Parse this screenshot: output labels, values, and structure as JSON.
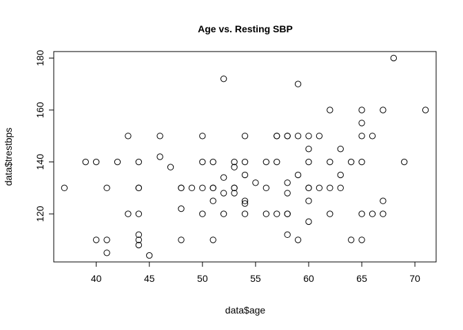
{
  "chart_data": {
    "type": "scatter",
    "title": "Age vs. Resting SBP",
    "xlabel": "data$age",
    "ylabel": "data$trestbps",
    "xlim": [
      36,
      72
    ],
    "ylim": [
      101.5,
      182.5
    ],
    "xticks": [
      40,
      45,
      50,
      55,
      60,
      65,
      70
    ],
    "yticks": [
      120,
      140,
      160,
      180
    ],
    "marker": "open-circle",
    "colors": {
      "point_stroke": "#000000",
      "axis": "#000000",
      "background": "#ffffff"
    },
    "points": [
      {
        "x": 37,
        "y": 130
      },
      {
        "x": 39,
        "y": 140
      },
      {
        "x": 40,
        "y": 140
      },
      {
        "x": 40,
        "y": 110
      },
      {
        "x": 41,
        "y": 130
      },
      {
        "x": 41,
        "y": 110
      },
      {
        "x": 41,
        "y": 105
      },
      {
        "x": 42,
        "y": 140
      },
      {
        "x": 43,
        "y": 150
      },
      {
        "x": 43,
        "y": 120
      },
      {
        "x": 44,
        "y": 140
      },
      {
        "x": 44,
        "y": 130
      },
      {
        "x": 44,
        "y": 130
      },
      {
        "x": 44,
        "y": 120
      },
      {
        "x": 44,
        "y": 112
      },
      {
        "x": 44,
        "y": 110
      },
      {
        "x": 44,
        "y": 108
      },
      {
        "x": 45,
        "y": 104
      },
      {
        "x": 46,
        "y": 150
      },
      {
        "x": 46,
        "y": 142
      },
      {
        "x": 47,
        "y": 138
      },
      {
        "x": 48,
        "y": 130
      },
      {
        "x": 48,
        "y": 130
      },
      {
        "x": 48,
        "y": 122
      },
      {
        "x": 48,
        "y": 110
      },
      {
        "x": 49,
        "y": 130
      },
      {
        "x": 50,
        "y": 150
      },
      {
        "x": 50,
        "y": 140
      },
      {
        "x": 50,
        "y": 130
      },
      {
        "x": 50,
        "y": 120
      },
      {
        "x": 51,
        "y": 140
      },
      {
        "x": 51,
        "y": 130
      },
      {
        "x": 51,
        "y": 130
      },
      {
        "x": 51,
        "y": 125
      },
      {
        "x": 51,
        "y": 110
      },
      {
        "x": 52,
        "y": 172
      },
      {
        "x": 52,
        "y": 134
      },
      {
        "x": 52,
        "y": 128
      },
      {
        "x": 52,
        "y": 120
      },
      {
        "x": 53,
        "y": 140
      },
      {
        "x": 53,
        "y": 138
      },
      {
        "x": 53,
        "y": 130
      },
      {
        "x": 53,
        "y": 130
      },
      {
        "x": 53,
        "y": 128
      },
      {
        "x": 54,
        "y": 150
      },
      {
        "x": 54,
        "y": 140
      },
      {
        "x": 54,
        "y": 135
      },
      {
        "x": 54,
        "y": 125
      },
      {
        "x": 54,
        "y": 124
      },
      {
        "x": 54,
        "y": 120
      },
      {
        "x": 55,
        "y": 132
      },
      {
        "x": 56,
        "y": 140
      },
      {
        "x": 56,
        "y": 130
      },
      {
        "x": 56,
        "y": 120
      },
      {
        "x": 57,
        "y": 150
      },
      {
        "x": 57,
        "y": 150
      },
      {
        "x": 57,
        "y": 140
      },
      {
        "x": 57,
        "y": 120
      },
      {
        "x": 58,
        "y": 150
      },
      {
        "x": 58,
        "y": 150
      },
      {
        "x": 58,
        "y": 132
      },
      {
        "x": 58,
        "y": 128
      },
      {
        "x": 58,
        "y": 120
      },
      {
        "x": 58,
        "y": 120
      },
      {
        "x": 58,
        "y": 112
      },
      {
        "x": 59,
        "y": 170
      },
      {
        "x": 59,
        "y": 150
      },
      {
        "x": 59,
        "y": 135
      },
      {
        "x": 59,
        "y": 110
      },
      {
        "x": 60,
        "y": 150
      },
      {
        "x": 60,
        "y": 145
      },
      {
        "x": 60,
        "y": 140
      },
      {
        "x": 60,
        "y": 130
      },
      {
        "x": 60,
        "y": 130
      },
      {
        "x": 60,
        "y": 125
      },
      {
        "x": 60,
        "y": 117
      },
      {
        "x": 61,
        "y": 150
      },
      {
        "x": 61,
        "y": 130
      },
      {
        "x": 62,
        "y": 160
      },
      {
        "x": 62,
        "y": 140
      },
      {
        "x": 62,
        "y": 130
      },
      {
        "x": 62,
        "y": 120
      },
      {
        "x": 63,
        "y": 145
      },
      {
        "x": 63,
        "y": 135
      },
      {
        "x": 63,
        "y": 130
      },
      {
        "x": 64,
        "y": 140
      },
      {
        "x": 64,
        "y": 110
      },
      {
        "x": 65,
        "y": 160
      },
      {
        "x": 65,
        "y": 155
      },
      {
        "x": 65,
        "y": 150
      },
      {
        "x": 65,
        "y": 140
      },
      {
        "x": 65,
        "y": 120
      },
      {
        "x": 65,
        "y": 110
      },
      {
        "x": 66,
        "y": 150
      },
      {
        "x": 66,
        "y": 120
      },
      {
        "x": 67,
        "y": 160
      },
      {
        "x": 67,
        "y": 125
      },
      {
        "x": 67,
        "y": 120
      },
      {
        "x": 68,
        "y": 180
      },
      {
        "x": 69,
        "y": 140
      },
      {
        "x": 71,
        "y": 160
      }
    ]
  }
}
